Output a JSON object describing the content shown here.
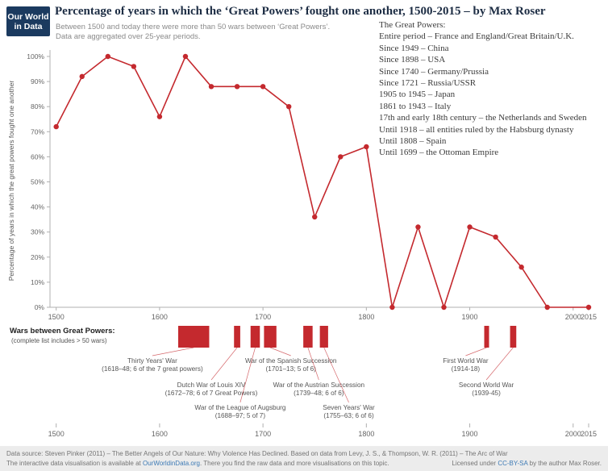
{
  "logo": {
    "line1": "Our World",
    "line2": "in Data"
  },
  "header": {
    "title": "Percentage of years in which the ‘Great Powers’ fought one another, 1500-2015 – by Max Roser",
    "subtitle_line1": "Between 1500 and today there were more than 50 wars between ‘Great Powers’.",
    "subtitle_line2": "Data are aggregated over 25-year periods."
  },
  "great_powers": {
    "heading": "The Great Powers:",
    "items": [
      "Entire period – France and England/Great Britain/U.K.",
      "Since 1949 – China",
      "Since 1898 – USA",
      "Since 1740 – Germany/Prussia",
      "Since 1721 – Russia/USSR",
      "1905 to 1945 – Japan",
      "1861 to 1943 – Italy",
      "17th and early 18th century – the Netherlands and Sweden",
      "Until 1918 – all entities ruled by the Habsburg dynasty",
      "Until 1808 – Spain",
      "Until 1699 – the Ottoman Empire"
    ]
  },
  "chart_data": {
    "type": "line",
    "title": "Percentage of years in which the ‘Great Powers’ fought one another, 1500-2015",
    "xlabel": "",
    "ylabel": "Percentage of years in which the great powers fought one another",
    "ylim": [
      0,
      100
    ],
    "xlim": [
      1500,
      2015
    ],
    "grid": false,
    "legend": false,
    "line_color": "#c4292e",
    "x_axis_ticks": [
      1500,
      1600,
      1700,
      1800,
      1900,
      2000,
      2015
    ],
    "y_axis_ticks": [
      "0%",
      "10%",
      "20%",
      "30%",
      "40%",
      "50%",
      "60%",
      "70%",
      "80%",
      "90%",
      "100%"
    ],
    "periods": [
      "1500–24",
      "1525–49",
      "1550–74",
      "1575–99",
      "1600–24",
      "1625–49",
      "1650–74",
      "1675–99",
      "1700–24",
      "1725–49",
      "1750–74",
      "1775–99",
      "1800–24",
      "1825–49",
      "1850–74",
      "1875–99",
      "1900–24",
      "1925–49",
      "1950–74",
      "1975–99",
      "2000–15"
    ],
    "x": [
      1500,
      1525,
      1550,
      1575,
      1600,
      1625,
      1650,
      1675,
      1700,
      1725,
      1750,
      1775,
      1800,
      1825,
      1850,
      1875,
      1900,
      1925,
      1950,
      1975,
      2015
    ],
    "values": [
      72,
      92,
      100,
      96,
      76,
      100,
      88,
      88,
      88,
      80,
      36,
      60,
      64,
      0,
      32,
      0,
      32,
      28,
      16,
      0,
      0
    ],
    "timeline": {
      "heading": "Wars between Great Powers:",
      "subheading": "(complete list includes > 50 wars)",
      "axis_ticks": [
        1500,
        1600,
        1700,
        1800,
        1900,
        2000,
        2015
      ],
      "wars": [
        {
          "name": "Thirty Years' War",
          "detail": "(1618–48; 6 of the 7 great powers)",
          "start": 1618,
          "end": 1648,
          "row": 0,
          "label_year": 1593
        },
        {
          "name": "War of the Spanish Succession",
          "detail": "(1701–13; 5 of 6)",
          "start": 1701,
          "end": 1713,
          "row": 0,
          "label_year": 1727
        },
        {
          "name": "First World War",
          "detail": "(1914-18)",
          "start": 1914,
          "end": 1918,
          "row": 0,
          "label_year": 1896
        },
        {
          "name": "Dutch War of Louis XIV",
          "detail": "(1672–78; 6 of 7 Great Powers)",
          "start": 1672,
          "end": 1678,
          "row": 1,
          "label_year": 1650
        },
        {
          "name": "War of the Austrian Succession",
          "detail": "(1739–48; 6 of 6)",
          "start": 1739,
          "end": 1748,
          "row": 1,
          "label_year": 1754
        },
        {
          "name": "Second World War",
          "detail": "(1939-45)",
          "start": 1939,
          "end": 1945,
          "row": 1,
          "label_year": 1916
        },
        {
          "name": "War of the League of Augsburg",
          "detail": "(1688–97; 5 of 7)",
          "start": 1688,
          "end": 1697,
          "row": 2,
          "label_year": 1678
        },
        {
          "name": "Seven Years' War",
          "detail": "(1755–63; 6 of 6)",
          "start": 1755,
          "end": 1763,
          "row": 2,
          "label_year": 1783
        }
      ]
    }
  },
  "footer": {
    "source_line": "Data source: Steven Pinker (2011) – The Better Angels of Our Nature: Why Violence Has Declined. Based on data from Levy, J. S., & Thompson, W. R. (2011) – The Arc of War",
    "info_pre": "The interactive data visualisation is available at ",
    "info_link": "OurWorldinData.org",
    "info_post": ". There you find the raw data and more visualisations on this topic.",
    "license_pre": "Licensed under ",
    "license_link": "CC-BY-SA",
    "license_post": " by the author Max Roser."
  },
  "colors": {
    "accent_red": "#c4292e",
    "navy": "#1b3a5f",
    "link_blue": "#3d7ab5"
  }
}
